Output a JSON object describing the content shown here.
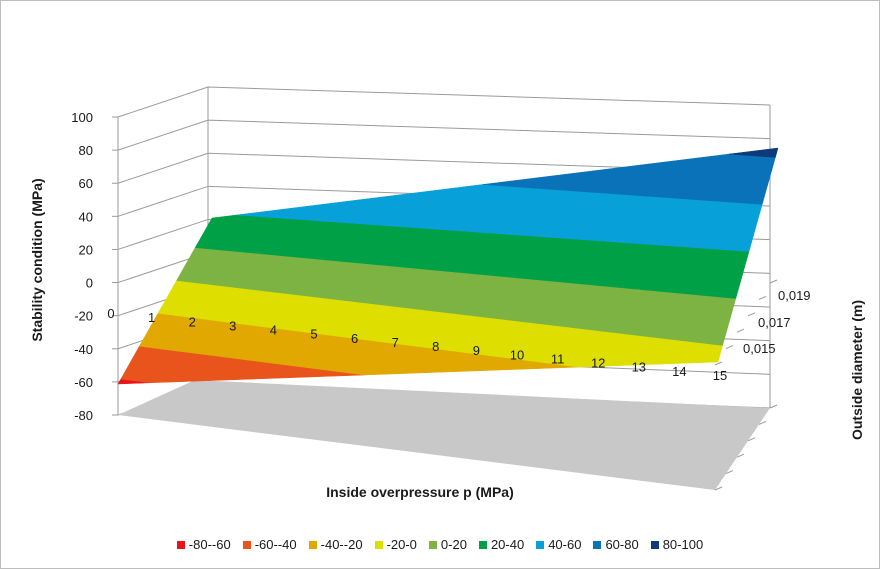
{
  "chart_data": {
    "type": "surface",
    "x_axis": {
      "label": "Inside overpressure  p (MPa)",
      "ticks": [
        "0",
        "1",
        "2",
        "3",
        "4",
        "5",
        "6",
        "7",
        "8",
        "9",
        "10",
        "11",
        "12",
        "13",
        "14",
        "15"
      ]
    },
    "y_axis": {
      "label": "Outside diameter  (m)",
      "ticks": [
        "0,015",
        "0,017",
        "0,019"
      ]
    },
    "z_axis": {
      "label": "Stability condition (MPa)",
      "ticks": [
        "100",
        "80",
        "60",
        "40",
        "20",
        "0",
        "-20",
        "-40",
        "-60",
        "-80"
      ],
      "range": [
        -80,
        100
      ]
    },
    "surface_corners": [
      {
        "p": 0,
        "d": 0.015,
        "value": -63
      },
      {
        "p": 0,
        "d": 0.019,
        "value": 38
      },
      {
        "p": 15,
        "d": 0.015,
        "value": -7
      },
      {
        "p": 15,
        "d": 0.019,
        "value": 84
      }
    ],
    "legend": [
      {
        "label": "-80--60",
        "color": "#e8141b"
      },
      {
        "label": "-60--40",
        "color": "#e8541b"
      },
      {
        "label": "-40--20",
        "color": "#e0a800"
      },
      {
        "label": "-20-0",
        "color": "#dede00"
      },
      {
        "label": "0-20",
        "color": "#7cb342"
      },
      {
        "label": "20-40",
        "color": "#00a046"
      },
      {
        "label": "40-60",
        "color": "#08a0d8"
      },
      {
        "label": "60-80",
        "color": "#0a72b8"
      },
      {
        "label": "80-100",
        "color": "#0d3a7a"
      }
    ],
    "grid": true
  }
}
